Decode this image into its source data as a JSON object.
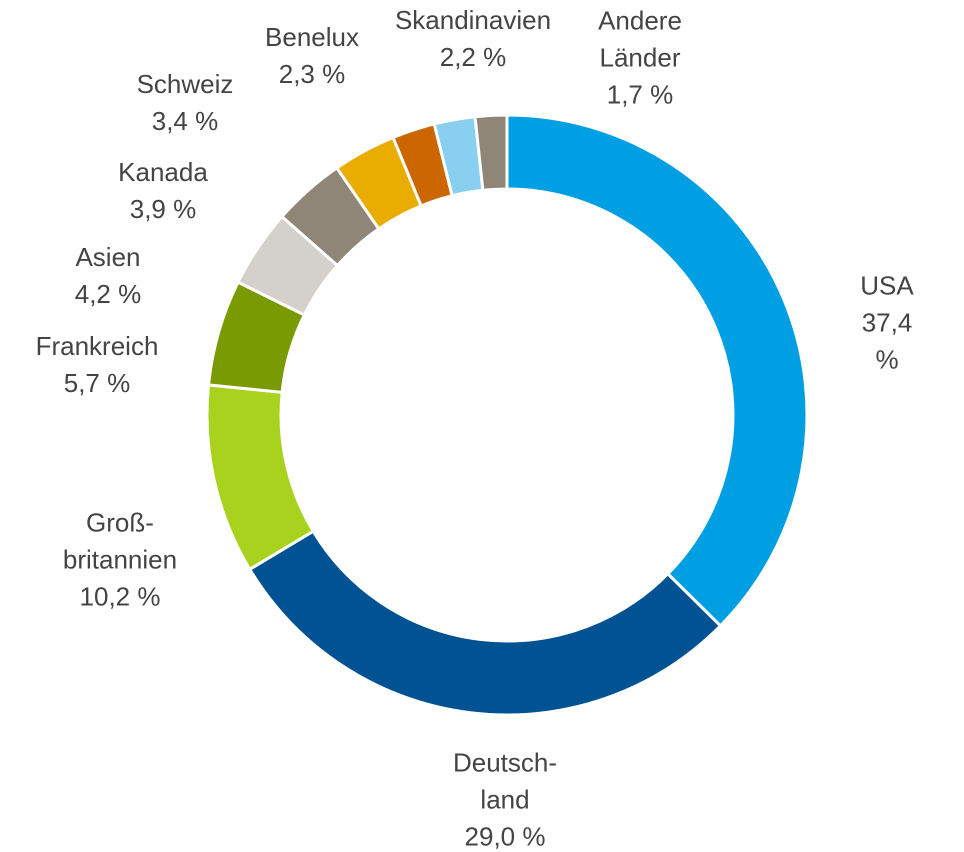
{
  "chart_data": {
    "type": "donut",
    "categories": [
      "USA",
      "Deutsch-\nland",
      "Groß-\nbritannien",
      "Frankreich",
      "Asien",
      "Kanada",
      "Schweiz",
      "Benelux",
      "Skandinavien",
      "Andere\nLänder"
    ],
    "values": [
      37.4,
      29.0,
      10.2,
      5.7,
      4.2,
      3.9,
      3.4,
      2.3,
      2.2,
      1.7
    ],
    "value_labels": [
      "37,4 %",
      "29,0 %",
      "10,2 %",
      "5,7 %",
      "4,2 %",
      "3,9 %",
      "3,4 %",
      "2,3 %",
      "2,2 %",
      "1,7 %"
    ],
    "colors": [
      "#009fe3",
      "#005293",
      "#a8d21e",
      "#7a9a01",
      "#d4d1cc",
      "#8f8678",
      "#e9ac00",
      "#cc6600",
      "#89cff0",
      "#8f8678"
    ]
  }
}
